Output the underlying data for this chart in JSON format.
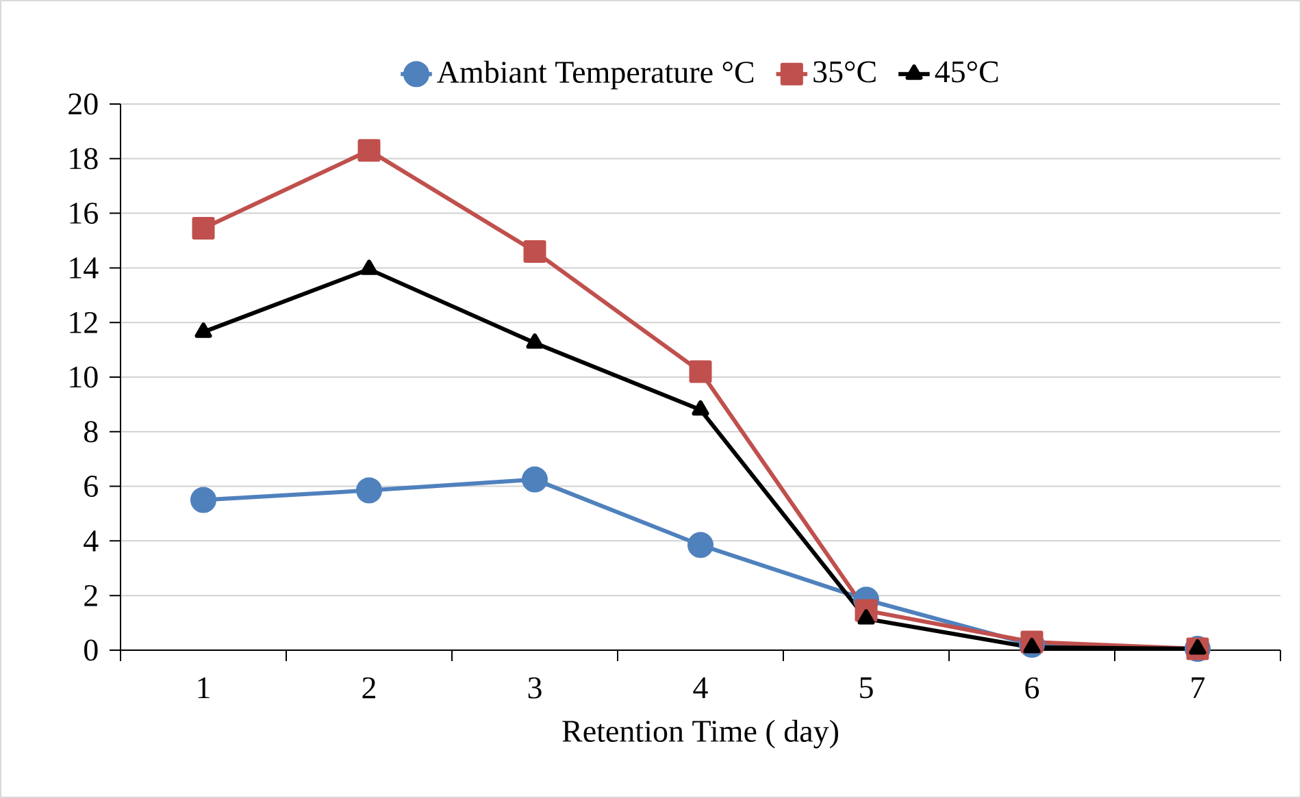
{
  "chart_data": {
    "type": "line",
    "xlabel": "Retention Time ( day)",
    "categories": [
      "1",
      "2",
      "3",
      "4",
      "5",
      "6",
      "7"
    ],
    "series": [
      {
        "name": "Ambiant Temperature °C",
        "color": "#4f81bd",
        "marker": "circle",
        "values": [
          5.5,
          5.85,
          6.25,
          3.85,
          1.85,
          0.2,
          0.05
        ]
      },
      {
        "name": "35°C",
        "color": "#c0504d",
        "marker": "square",
        "values": [
          15.45,
          18.3,
          14.6,
          10.2,
          1.45,
          0.3,
          0.05
        ]
      },
      {
        "name": "45°C",
        "color": "#000000",
        "marker": "triangle",
        "values": [
          11.65,
          13.95,
          11.25,
          8.8,
          1.15,
          0.1,
          0.05
        ]
      }
    ],
    "ylim": [
      0,
      20
    ],
    "yticks": [
      0,
      2,
      4,
      6,
      8,
      10,
      12,
      14,
      16,
      18,
      20
    ],
    "grid": "y",
    "legend": "top",
    "line_style": "solid"
  }
}
